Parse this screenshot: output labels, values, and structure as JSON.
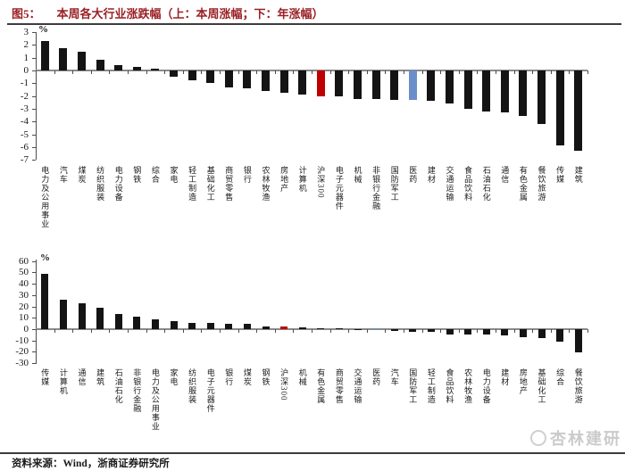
{
  "header": {
    "fig_label": "图5：",
    "title": "本周各大行业涨跌幅（上：本周涨幅；下：年涨幅）"
  },
  "colors": {
    "bar_default": "#141414",
    "csi300_red": "#C00000",
    "pharma_blue": "#6B8DC9",
    "title_red": "#9A2025",
    "axis_gray": "#8A8A8A"
  },
  "chart_data": [
    {
      "type": "bar",
      "name": "本周涨幅",
      "unit": "%",
      "ylim": [
        -7,
        3
      ],
      "yticks": [
        3,
        2,
        1,
        0,
        -1,
        -2,
        -3,
        -4,
        -5,
        -6,
        -7
      ],
      "grid": false,
      "legend": "none",
      "categories": [
        "电力及公用事业",
        "汽车",
        "煤炭",
        "纺织服装",
        "电力设备",
        "钢铁",
        "综合",
        "家电",
        "轻工制造",
        "基础化工",
        "商贸零售",
        "银行",
        "农林牧渔",
        "房地产",
        "计算机",
        "沪深300",
        "电子元器件",
        "机械",
        "非银行金融",
        "国防军工",
        "医药",
        "建材",
        "交通运输",
        "食品饮料",
        "石油石化",
        "通信",
        "有色金属",
        "餐饮旅游",
        "传媒",
        "建筑"
      ],
      "values": [
        2.3,
        1.75,
        1.5,
        0.85,
        0.4,
        0.25,
        0.15,
        -0.5,
        -0.8,
        -1.0,
        -1.3,
        -1.4,
        -1.6,
        -1.75,
        -1.9,
        -2.0,
        -2.05,
        -2.25,
        -2.25,
        -2.3,
        -2.3,
        -2.4,
        -2.6,
        -3.0,
        -3.2,
        -3.3,
        -3.6,
        -4.2,
        -5.9,
        -6.3
      ],
      "highlights": {
        "red_index": 15,
        "blue_index": 20
      }
    },
    {
      "type": "bar",
      "name": "年涨幅",
      "unit": "%",
      "ylim": [
        -30,
        60
      ],
      "yticks": [
        60,
        50,
        40,
        30,
        20,
        10,
        0,
        -10,
        -20,
        -30
      ],
      "grid": false,
      "legend": "none",
      "categories": [
        "传媒",
        "计算机",
        "通信",
        "建筑",
        "石油石化",
        "非银行金融",
        "电力及公用事业",
        "家电",
        "纺织服装",
        "电子元器件",
        "银行",
        "煤炭",
        "钢铁",
        "沪深300",
        "机械",
        "有色金属",
        "商贸零售",
        "交通运输",
        "医药",
        "汽车",
        "国防军工",
        "轻工制造",
        "食品饮料",
        "农林牧渔",
        "电力设备",
        "建材",
        "房地产",
        "基础化工",
        "综合",
        "餐饮旅游"
      ],
      "values": [
        49,
        26,
        23,
        18.5,
        13,
        11,
        8.5,
        7,
        5.5,
        5.3,
        5,
        4.5,
        2.5,
        2.1,
        1.9,
        0.6,
        0.2,
        -0.5,
        -1,
        -1.5,
        -2,
        -2.5,
        -4.5,
        -5,
        -5,
        -5.5,
        -7.3,
        -7.5,
        -11,
        -20.5
      ],
      "highlights": {
        "red_index": 13,
        "blue_index": 18
      }
    }
  ],
  "watermark": {
    "text": "杏林建研",
    "icon": "smiley-logo"
  },
  "footer": {
    "source": "资料来源：Wind，浙商证券研究所"
  }
}
